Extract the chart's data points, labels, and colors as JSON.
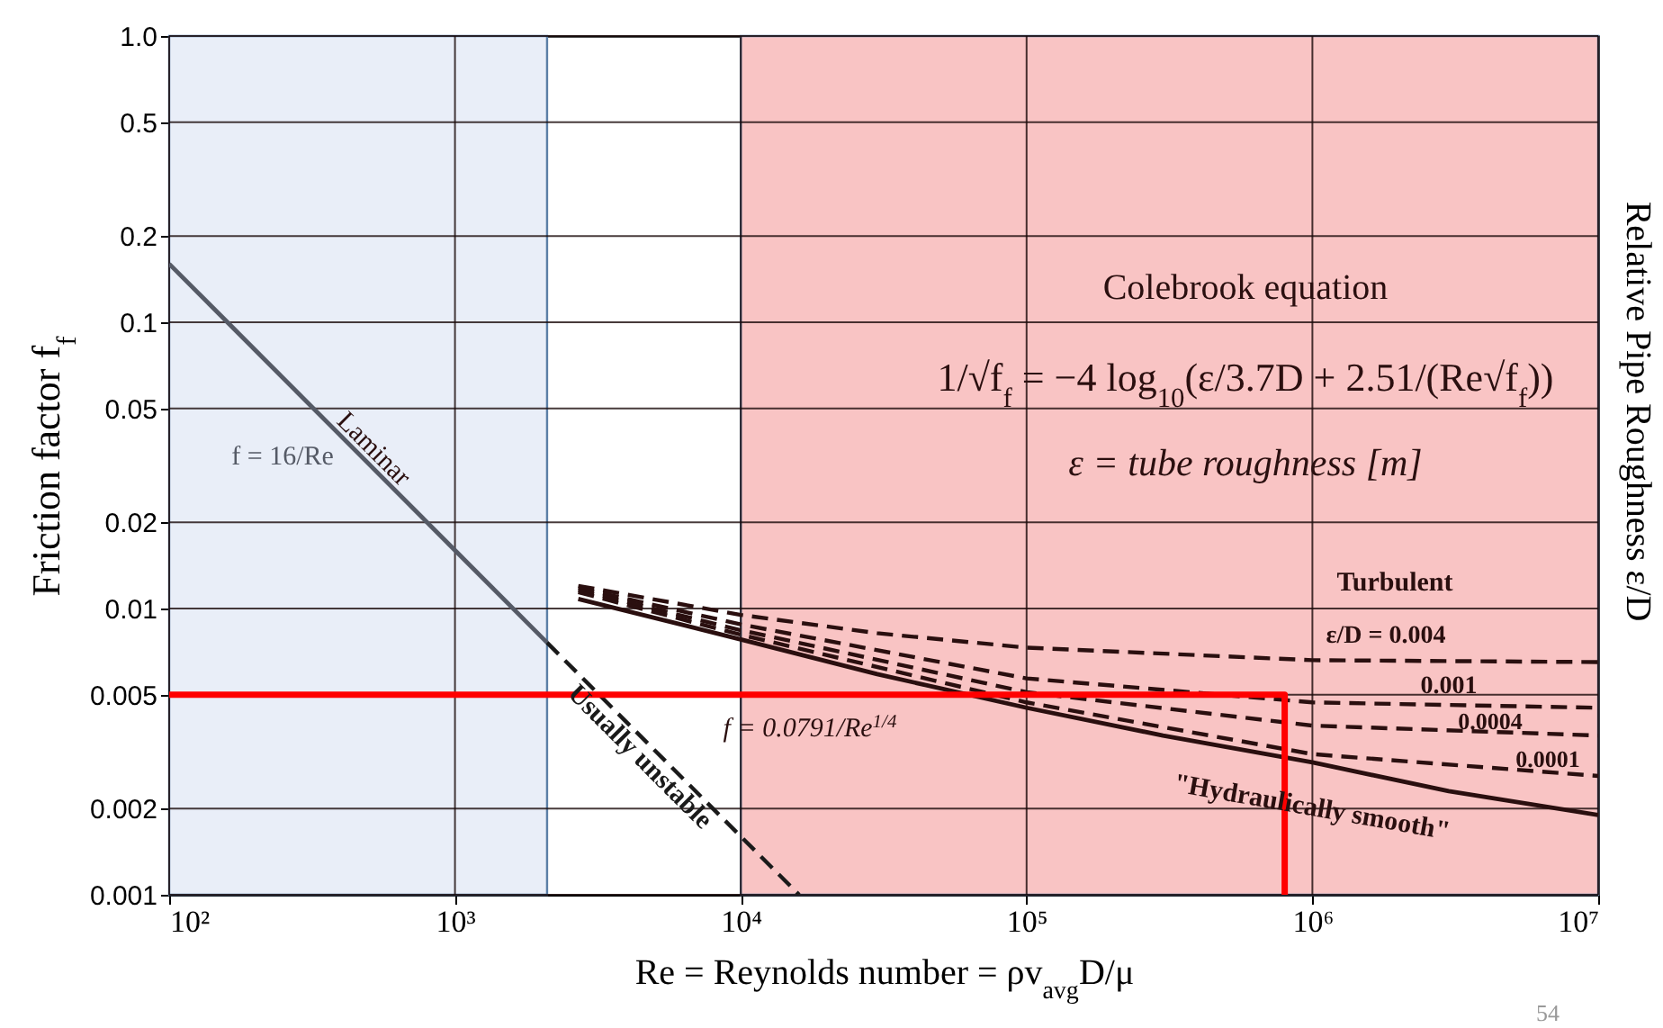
{
  "chart_data": {
    "type": "line",
    "xlabel": "Re = Reynolds number = ρv$_{avg}$D/μ",
    "ylabel": "Friction factor f$_{f}$",
    "y2label": "Relative Pipe Roughness ε/D",
    "log": "xy",
    "grid": true,
    "xlim": [
      100,
      10000000
    ],
    "ylim": [
      0.001,
      1
    ],
    "xticks": [
      {
        "value": 100,
        "label": "10²"
      },
      {
        "value": 1000,
        "label": "10³"
      },
      {
        "value": 10000,
        "label": "10⁴"
      },
      {
        "value": 100000,
        "label": "10⁵"
      },
      {
        "value": 1000000,
        "label": "10⁶"
      },
      {
        "value": 10000000,
        "label": "10⁷"
      }
    ],
    "yticks": [
      {
        "value": 1,
        "label": "1.0"
      },
      0.5,
      0.2,
      0.1,
      0.05,
      0.02,
      0.01,
      0.005,
      0.002,
      0.001
    ],
    "bands": [
      {
        "axis": "x",
        "from": 100,
        "to": 2100,
        "color": "#e9eef8"
      },
      {
        "axis": "x",
        "from": 10000,
        "to": 10000000,
        "color": "#f9c4c4"
      }
    ],
    "series": [
      {
        "color": "#555a66",
        "line_style": "solid",
        "x": [
          100,
          2100
        ],
        "values": [
          0.16,
          0.0076
        ]
      },
      {
        "color": "#1a1a1a",
        "line_style": "dashed",
        "x": [
          2100,
          16000
        ],
        "values": [
          0.0076,
          0.001
        ]
      },
      {
        "color": "#2a0f0f",
        "line_style": "solid",
        "x": [
          2700,
          10000,
          30000,
          100000,
          300000,
          1000000,
          3000000,
          10000000
        ],
        "values": [
          0.0108,
          0.0078,
          0.0059,
          0.0045,
          0.0036,
          0.0029,
          0.0023,
          0.0019
        ]
      },
      {
        "color": "#2a0f0f",
        "line_style": "dashed",
        "x": [
          2700,
          10000,
          30000,
          100000,
          1000000,
          10000000
        ],
        "values": [
          0.012,
          0.0095,
          0.0082,
          0.0073,
          0.0066,
          0.0065
        ]
      },
      {
        "color": "#2a0f0f",
        "line_style": "dashed",
        "x": [
          2700,
          10000,
          100000,
          1000000,
          10000000
        ],
        "values": [
          0.0118,
          0.0088,
          0.0057,
          0.0047,
          0.0045
        ]
      },
      {
        "color": "#2a0f0f",
        "line_style": "dashed",
        "x": [
          2700,
          10000,
          100000,
          1000000,
          10000000
        ],
        "values": [
          0.0116,
          0.0084,
          0.0051,
          0.0039,
          0.0036
        ]
      },
      {
        "color": "#2a0f0f",
        "line_style": "dashed",
        "x": [
          2700,
          10000,
          100000,
          1000000,
          10000000
        ],
        "values": [
          0.0114,
          0.0081,
          0.0047,
          0.0031,
          0.0026
        ]
      },
      {
        "color": "#ff0000",
        "line_style": "solid",
        "x": [
          100,
          800000,
          800000
        ],
        "values": [
          0.005,
          0.005,
          0.001
        ]
      }
    ],
    "annotations": [
      "Laminar",
      "f = 16/Re",
      "Usually unstable",
      "ε/D = 0.004",
      "0.001",
      "0.0004",
      "0.0001",
      "\"Hydraulically smooth\"",
      "Colebrook equation",
      "1/√f$_{f}$ = −4 log$_{10}$(ε/3.7D + 2.51/(Re√f$_{f}$))",
      "ε = tube roughness [m]",
      "Turbulent",
      "f = 0.0791/Re$^{1/4}$",
      "54"
    ]
  }
}
